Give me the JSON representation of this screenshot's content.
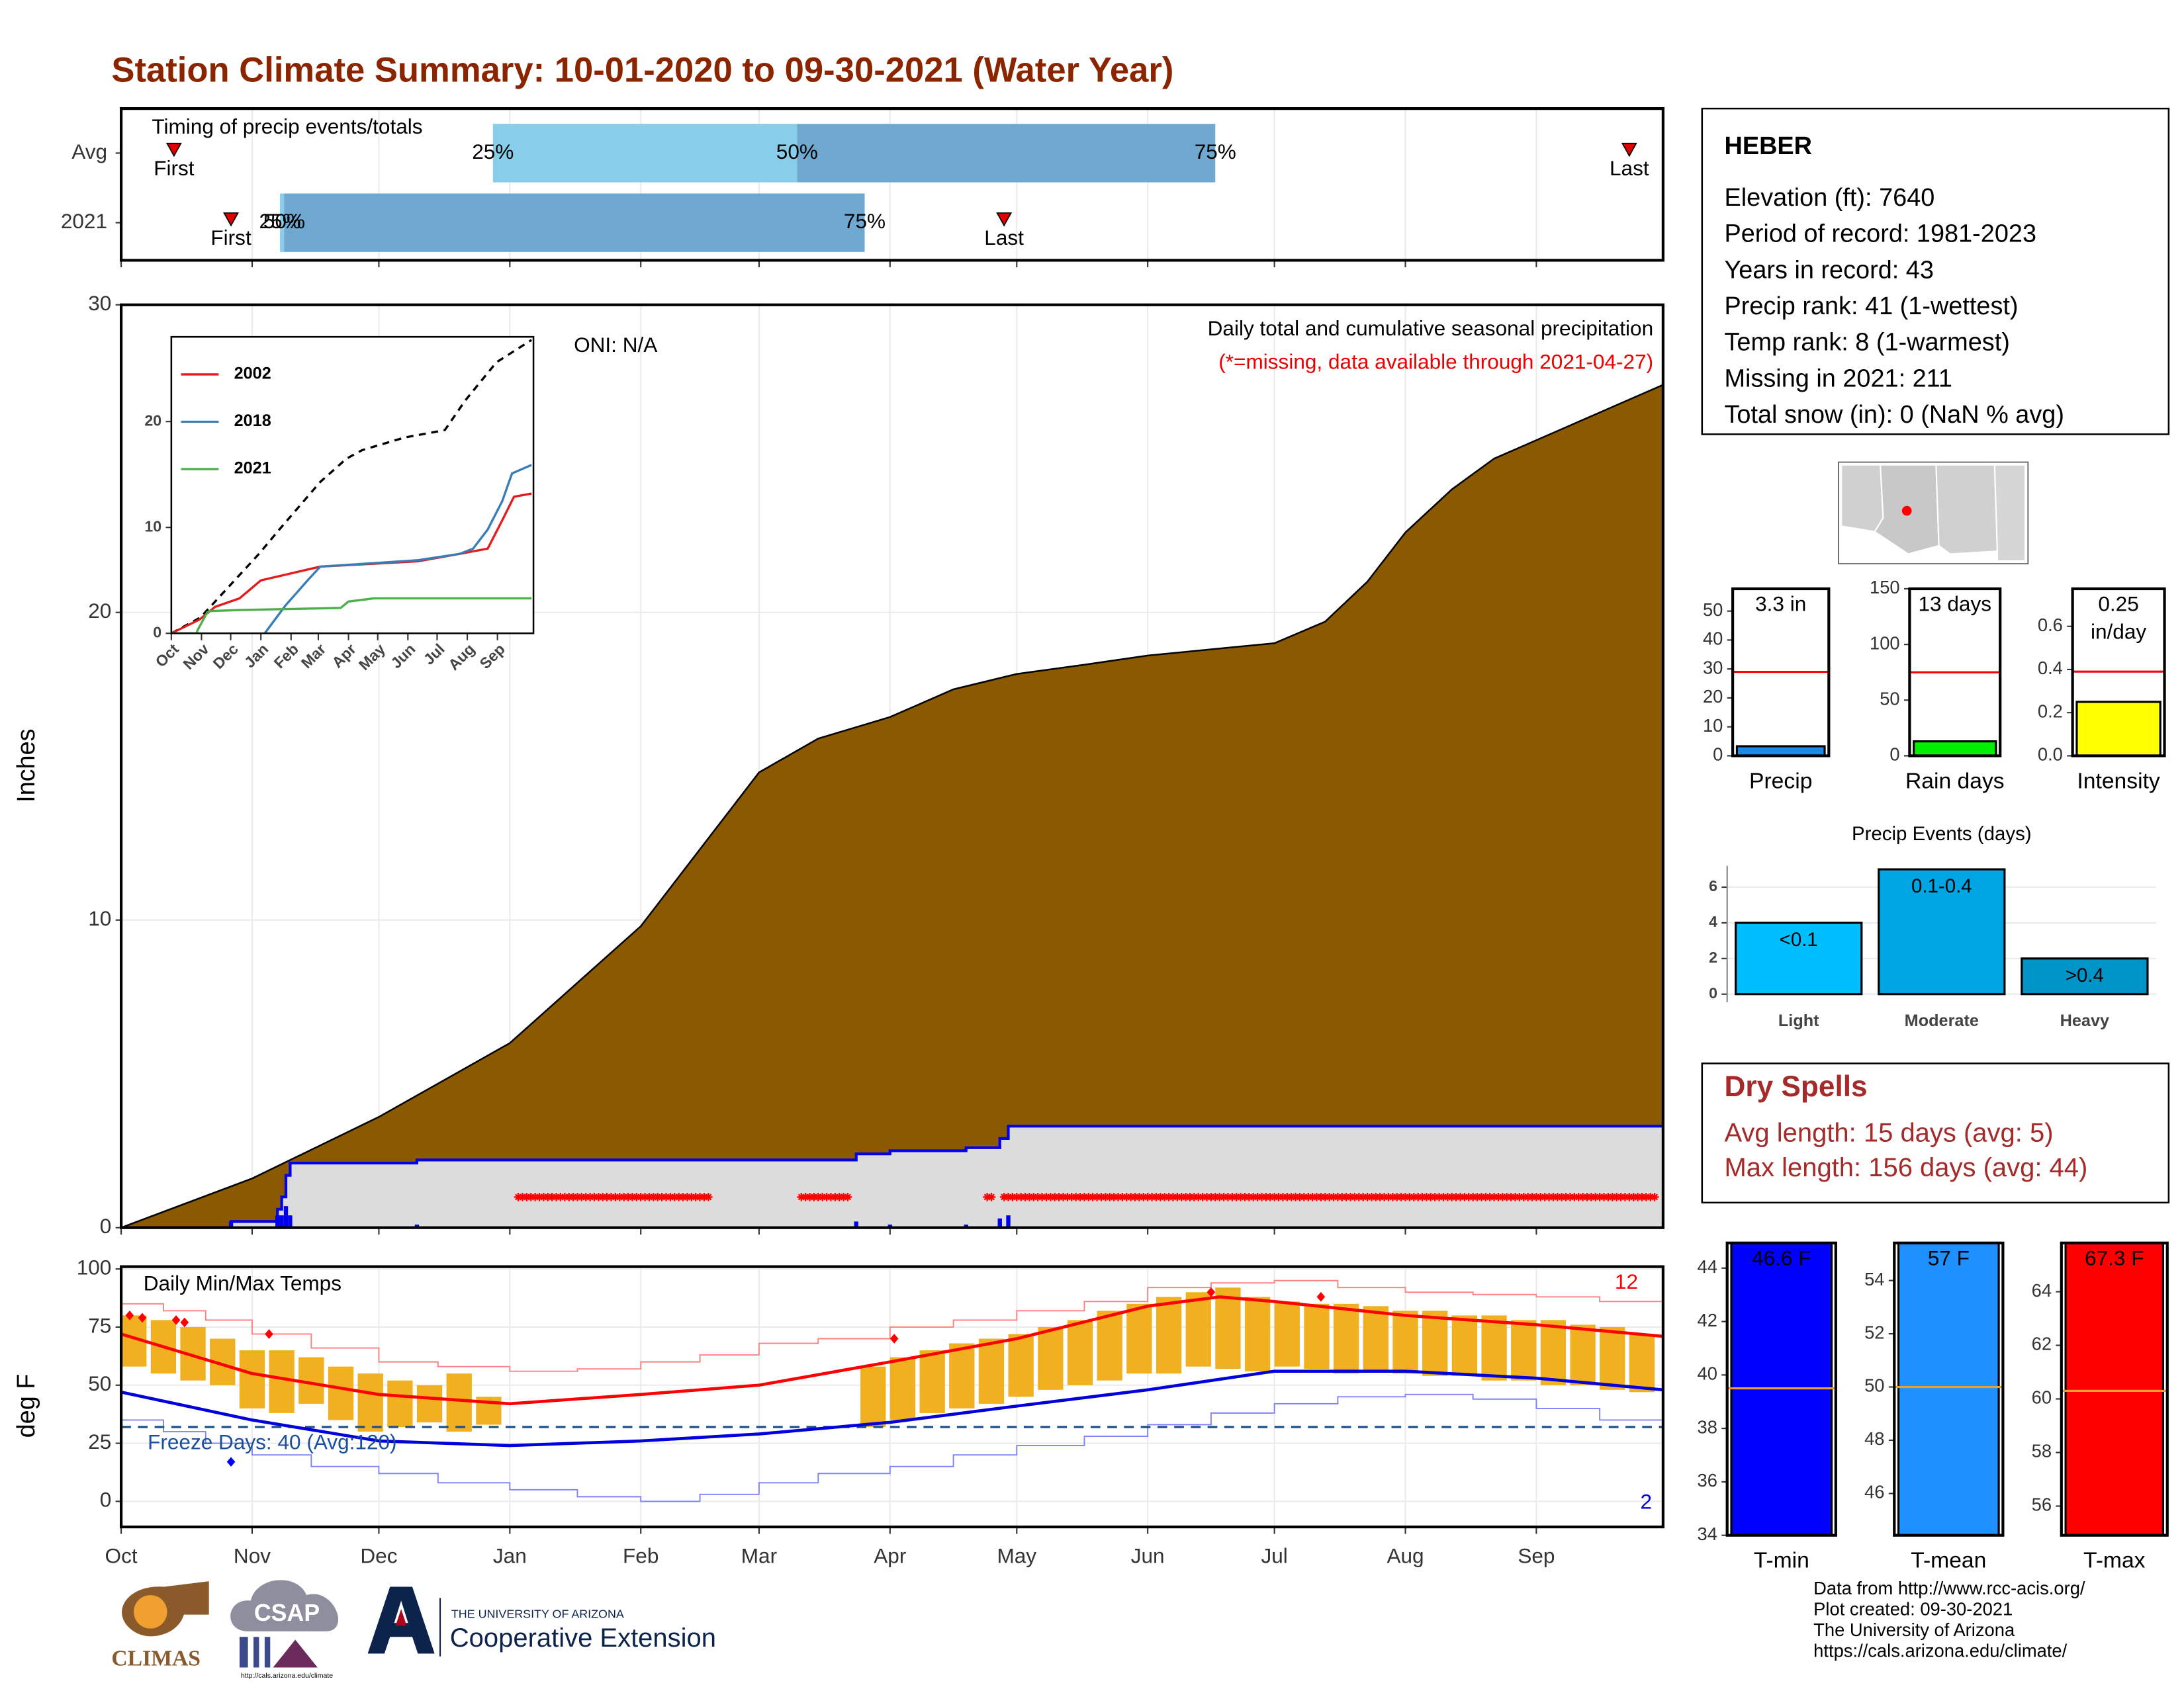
{
  "title": "Station Climate Summary: 10-01-2020 to 09-30-2021 (Water Year)",
  "station": {
    "name": "HEBER",
    "lines": [
      "Elevation (ft): 7640",
      "Period of record: 1981-2023",
      "Years in record: 43",
      "Precip rank: 41 (1-wettest)",
      "Temp rank: 8 (1-warmest)",
      "Missing in 2021: 211",
      "Total snow (in): 0 (NaN % avg)"
    ]
  },
  "dry_spells": {
    "title": "Dry Spells",
    "lines": [
      "Avg length: 15 days (avg: 5)",
      "Max length: 156 days (avg: 44)"
    ]
  },
  "footer": {
    "logos": [
      "CLIMAS",
      "CSAP",
      "http://cals.arizona.edu/climate",
      "THE UNIVERSITY OF ARIZONA",
      "Cooperative Extension"
    ],
    "credits": [
      "Data from http://www.rcc-acis.org/",
      "Plot created: 09-30-2021",
      "The University of Arizona",
      "https://cals.arizona.edu/climate/"
    ]
  },
  "chart_data": [
    {
      "type": "timeline",
      "title": "Timing of precip events/totals",
      "categories": [
        "Avg",
        "2021"
      ],
      "xlim": [
        0,
        365
      ],
      "xticks": [
        0,
        31,
        61,
        92,
        123,
        151,
        182,
        212,
        243,
        273,
        304,
        335
      ],
      "grid": true,
      "markers": [
        {
          "label": "First",
          "values": [
            12.5,
            26
          ]
        },
        {
          "label": "Last",
          "values": [
            357,
            209
          ]
        }
      ],
      "quantiles": [
        {
          "label": "25%",
          "values": [
            88,
            37.6
          ]
        },
        {
          "label": "50%",
          "values": [
            160,
            38.6
          ]
        },
        {
          "label": "75%",
          "values": [
            259,
            176
          ]
        }
      ],
      "colors": [
        "#87ceeb",
        "#6fa8d0"
      ],
      "marker_color": "#e00000"
    },
    {
      "type": "area",
      "ylabel": "Inches",
      "annotation": "ONI: N/A",
      "subtitle": "Daily total and cumulative seasonal precipitation",
      "note": "(*=missing, data available through 2021-04-27)",
      "note_color": "#ee0000",
      "xlim": [
        0,
        365
      ],
      "ylim": [
        0,
        30
      ],
      "xticks": [
        0,
        31,
        61,
        92,
        123,
        151,
        182,
        212,
        243,
        273,
        304,
        335
      ],
      "yticks": [
        0,
        10,
        20,
        30
      ],
      "grid": true,
      "average": {
        "color": "#8b5a00",
        "x": [
          0,
          31,
          61,
          92,
          123,
          137,
          151,
          165,
          182,
          197,
          212,
          228,
          243,
          258,
          273,
          285,
          295,
          304,
          315,
          325,
          335,
          350,
          365
        ],
        "values": [
          0,
          1.6,
          3.6,
          6.0,
          9.8,
          12.3,
          14.8,
          15.9,
          16.6,
          17.5,
          18.0,
          18.3,
          18.6,
          18.8,
          19.0,
          19.7,
          21.0,
          22.6,
          24.0,
          25.0,
          25.6,
          26.5,
          27.4
        ]
      },
      "observed": {
        "color": "#0000ee",
        "fill": "#dcdcdc",
        "x": [
          0,
          26,
          37,
          38,
          39,
          40,
          70,
          174,
          182,
          200,
          208,
          210,
          365
        ],
        "values": [
          0,
          0.2,
          0.6,
          1.0,
          1.7,
          2.1,
          2.2,
          2.4,
          2.5,
          2.6,
          2.9,
          3.3,
          3.3
        ]
      },
      "daily": {
        "color": "#0000ee",
        "x": [
          26,
          37,
          38,
          39,
          40,
          70,
          174,
          182,
          200,
          208,
          210
        ],
        "values": [
          0.2,
          0.4,
          0.4,
          0.7,
          0.4,
          0.1,
          0.2,
          0.1,
          0.1,
          0.3,
          0.4
        ]
      },
      "missing": {
        "color": "#ff0000",
        "ranges": [
          [
            94,
            139
          ],
          [
            161,
            172
          ],
          [
            205,
            206
          ],
          [
            209,
            363
          ]
        ]
      }
    },
    {
      "type": "line",
      "xlim": [
        0,
        372
      ],
      "ylim": [
        0,
        28
      ],
      "yticks": [
        0,
        10,
        20
      ],
      "xticks": [
        {
          "value": 0,
          "label": "Oct"
        },
        {
          "value": 31,
          "label": "Nov"
        },
        {
          "value": 61,
          "label": "Dec"
        },
        {
          "value": 92,
          "label": "Jan"
        },
        {
          "value": 123,
          "label": "Feb"
        },
        {
          "value": 151,
          "label": "Mar"
        },
        {
          "value": 182,
          "label": "Apr"
        },
        {
          "value": 212,
          "label": "May"
        },
        {
          "value": 243,
          "label": "Jun"
        },
        {
          "value": 273,
          "label": "Jul"
        },
        {
          "value": 304,
          "label": "Aug"
        },
        {
          "value": 335,
          "label": "Sep"
        }
      ],
      "series": [
        {
          "color": "#000000",
          "dash": true,
          "x": [
            0,
            30,
            60,
            90,
            110,
            153,
            180,
            196,
            240,
            270,
            281,
            302,
            334,
            370
          ],
          "values": [
            0,
            1.5,
            4.5,
            7.5,
            9.7,
            14.3,
            16.5,
            17.3,
            18.5,
            19.0,
            19.2,
            22,
            25.6,
            27.7
          ]
        },
        {
          "name": "2002",
          "color": "#e41a1c",
          "x": [
            0,
            29,
            45,
            70,
            92,
            153,
            253,
            296,
            325,
            339,
            352,
            370
          ],
          "values": [
            0,
            1.3,
            2.5,
            3.3,
            5,
            6.3,
            6.8,
            7.5,
            8,
            10.5,
            12.9,
            13.2
          ]
        },
        {
          "name": "2018",
          "color": "#377eb8",
          "x": [
            96,
            117,
            140,
            153,
            253,
            296,
            310,
            325,
            340,
            350,
            370
          ],
          "values": [
            0,
            2.6,
            5,
            6.3,
            6.9,
            7.5,
            8,
            9.8,
            12.5,
            15.1,
            15.9
          ]
        },
        {
          "name": "2021",
          "color": "#4daf4a",
          "x": [
            0,
            26,
            27,
            37,
            40,
            70,
            174,
            182,
            208,
            370
          ],
          "values": [
            0,
            0,
            0.3,
            2,
            2.1,
            2.2,
            2.4,
            3,
            3.3,
            3.3
          ]
        }
      ]
    },
    {
      "type": "band",
      "title": "Daily Min/Max Temps",
      "ylabel": "deg F",
      "annotation": "Freeze Days: 40 (Avg:120)",
      "high_count": "12",
      "low_count": "2",
      "freeze": 32,
      "xlim": [
        0,
        365
      ],
      "ylim": [
        -11,
        101
      ],
      "yticks": [
        0,
        25,
        50,
        75,
        100
      ],
      "grid": true,
      "xticks": [
        {
          "value": 0,
          "label": "Oct"
        },
        {
          "value": 31,
          "label": "Nov"
        },
        {
          "value": 61,
          "label": "Dec"
        },
        {
          "value": 92,
          "label": "Jan"
        },
        {
          "value": 123,
          "label": "Feb"
        },
        {
          "value": 151,
          "label": "Mar"
        },
        {
          "value": 182,
          "label": "Apr"
        },
        {
          "value": 212,
          "label": "May"
        },
        {
          "value": 243,
          "label": "Jun"
        },
        {
          "value": 273,
          "label": "Jul"
        },
        {
          "value": 304,
          "label": "Aug"
        },
        {
          "value": 335,
          "label": "Sep"
        }
      ],
      "observed": {
        "color": "#f0b020",
        "x": [
          0,
          7,
          14,
          21,
          28,
          35,
          42,
          49,
          56,
          63,
          70,
          77,
          84,
          175,
          182,
          189,
          196,
          203,
          210,
          217,
          224,
          231,
          238,
          245,
          252,
          259,
          266,
          273,
          280,
          287,
          294,
          301,
          308,
          315,
          322,
          329,
          336,
          343,
          350,
          357
        ],
        "low": [
          58,
          55,
          52,
          50,
          40,
          38,
          42,
          35,
          30,
          32,
          34,
          30,
          33,
          32,
          35,
          38,
          40,
          42,
          45,
          48,
          50,
          52,
          55,
          55,
          58,
          57,
          56,
          58,
          57,
          55,
          56,
          55,
          54,
          54,
          52,
          52,
          50,
          50,
          48,
          47
        ],
        "high": [
          80,
          78,
          75,
          70,
          65,
          65,
          62,
          58,
          55,
          52,
          50,
          55,
          45,
          58,
          62,
          65,
          68,
          70,
          72,
          75,
          78,
          82,
          85,
          88,
          90,
          92,
          88,
          86,
          85,
          85,
          84,
          82,
          82,
          80,
          80,
          78,
          78,
          76,
          75,
          72
        ]
      },
      "record_max": {
        "color": "#ff8080",
        "x": [
          0,
          10,
          20,
          31,
          45,
          61,
          75,
          92,
          108,
          123,
          137,
          151,
          165,
          182,
          197,
          212,
          228,
          243,
          258,
          273,
          288,
          304,
          320,
          335,
          350,
          365
        ],
        "values": [
          85,
          82,
          78,
          72,
          66,
          60,
          58,
          56,
          57,
          60,
          63,
          68,
          70,
          75,
          78,
          82,
          86,
          92,
          94,
          95,
          92,
          90,
          89,
          88,
          86,
          82
        ]
      },
      "record_min": {
        "color": "#8080ff",
        "x": [
          0,
          10,
          20,
          31,
          45,
          61,
          75,
          92,
          108,
          123,
          137,
          151,
          165,
          182,
          197,
          212,
          228,
          243,
          258,
          273,
          288,
          304,
          320,
          335,
          350,
          365
        ],
        "values": [
          35,
          30,
          25,
          20,
          15,
          12,
          8,
          5,
          2,
          0,
          3,
          8,
          12,
          15,
          20,
          24,
          28,
          33,
          38,
          42,
          45,
          46,
          44,
          40,
          35,
          33
        ]
      },
      "avg_max": {
        "color": "#ff0000",
        "x": [
          0,
          31,
          61,
          92,
          123,
          151,
          182,
          212,
          243,
          260,
          273,
          304,
          335,
          365
        ],
        "values": [
          72,
          55,
          46,
          42,
          46,
          50,
          60,
          70,
          84,
          88,
          86,
          80,
          76,
          71
        ]
      },
      "avg_min": {
        "color": "#0000dd",
        "x": [
          0,
          31,
          61,
          92,
          123,
          151,
          182,
          212,
          243,
          273,
          304,
          335,
          365
        ],
        "values": [
          47,
          35,
          26,
          24,
          26,
          29,
          34,
          41,
          48,
          56,
          56,
          53,
          48
        ]
      },
      "record_highs": {
        "color": "#ff0000",
        "x": [
          2,
          5,
          13,
          15,
          35,
          183,
          258,
          284
        ],
        "values": [
          80,
          79,
          78,
          77,
          72,
          70,
          90,
          88
        ]
      },
      "record_lows": {
        "color": "#0000ff",
        "x": [
          26
        ],
        "values": [
          17
        ]
      }
    },
    {
      "type": "bar",
      "xlabel": "Precip",
      "values": [
        3.3
      ],
      "value_labels": [
        "3.3 in"
      ],
      "color": "#1e88e5",
      "average": 29,
      "average_color": "#ff0000",
      "ylim": [
        0,
        57.7
      ],
      "yticks": [
        0,
        10,
        20,
        30,
        40,
        50
      ]
    },
    {
      "type": "bar",
      "xlabel": "Rain days",
      "values": [
        13
      ],
      "value_labels": [
        "13 days"
      ],
      "color": "#00ee00",
      "average": 75,
      "average_color": "#ff0000",
      "ylim": [
        0,
        150
      ],
      "yticks": [
        0,
        50,
        100,
        150
      ]
    },
    {
      "type": "bar",
      "xlabel": "Intensity",
      "values": [
        0.25
      ],
      "value_labels": [
        "0.25 in/day"
      ],
      "color": "#ffff00",
      "average": 0.39,
      "average_color": "#ff0000",
      "ylim": [
        0,
        0.774
      ],
      "yticks": [
        {
          "value": 0,
          "label": "0.0"
        },
        {
          "value": 0.2,
          "label": "0.2"
        },
        {
          "value": 0.4,
          "label": "0.4"
        },
        {
          "value": 0.6,
          "label": "0.6"
        }
      ]
    },
    {
      "type": "bar",
      "title": "Precip Events (days)",
      "categories": [
        "Light",
        "Moderate",
        "Heavy"
      ],
      "values": [
        4,
        7,
        2
      ],
      "value_labels": [
        "<0.1",
        "0.1-0.4",
        ">0.4"
      ],
      "colors": [
        "#00bfff",
        "#00a5e3",
        "#0095c8"
      ],
      "ylim": [
        -0.45,
        7.2
      ],
      "yticks": [
        0,
        2,
        4,
        6
      ],
      "grid": true
    },
    {
      "type": "bar",
      "xlabel": "T-min",
      "values": [
        46.6
      ],
      "value_labels": [
        "46.6 F"
      ],
      "color": "#0000ff",
      "average": 39.5,
      "average_color": "#e8a030",
      "ylim": [
        34,
        44.94
      ],
      "yticks": [
        34,
        36,
        38,
        40,
        42,
        44
      ]
    },
    {
      "type": "bar",
      "xlabel": "T-mean",
      "values": [
        57
      ],
      "value_labels": [
        "57 F"
      ],
      "color": "#1e90ff",
      "average": 50,
      "average_color": "#e8a030",
      "ylim": [
        44.43,
        55.41
      ],
      "yticks": [
        46,
        48,
        50,
        52,
        54
      ]
    },
    {
      "type": "bar",
      "xlabel": "T-max",
      "values": [
        67.3
      ],
      "value_labels": [
        "67.3 F"
      ],
      "color": "#ff0000",
      "average": 60.3,
      "average_color": "#e8a030",
      "ylim": [
        54.91,
        65.82
      ],
      "yticks": [
        56,
        58,
        60,
        62,
        64
      ]
    }
  ]
}
